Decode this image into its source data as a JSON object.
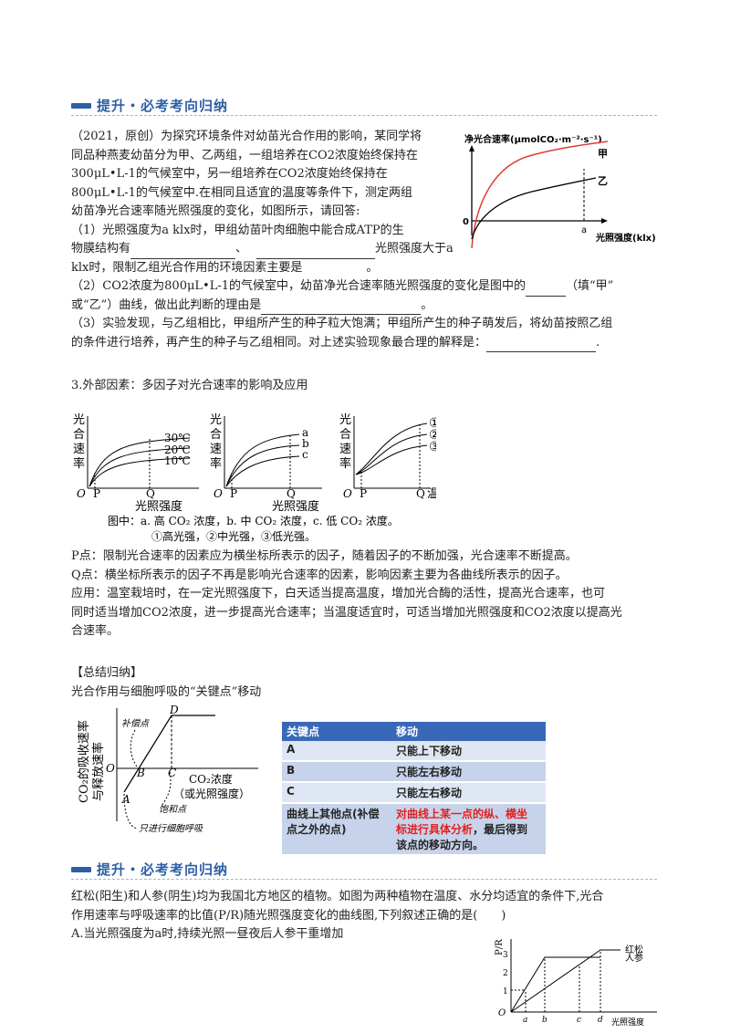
{
  "section1": {
    "title": "提升・必考考向归纳"
  },
  "question1": {
    "intro": "（2021，原创）为探究环境条件对幼苗光合作用的影响，某同学将同品种燕麦幼苗分为甲、乙两组，一组培养在CO2浓度始终保持在300μL•L-1的气候室中，另一组培养在CO2浓度始终保持在800μL•L-1的气候室中.在相同且适宜的温度等条件下，测定两组幼苗净光合速率随光照强度的变化，如图所示，请回答:",
    "lines": [
      "（2021，原创）为探究环境条件对幼苗光合作用的影响，某同学将",
      "同品种燕麦幼苗分为甲、乙两组，一组培养在CO2浓度始终保持在",
      "300μL•L-1的气候室中，另一组培养在CO2浓度始终保持在",
      "800μL•L-1的气候室中.在相同且适宜的温度等条件下，测定两组",
      "幼苗净光合速率随光照强度的变化，如图所示，请回答:"
    ],
    "q1_a": "（1）光照强度为a klx时，甲组幼苗叶肉细胞中能合成ATP的生",
    "q1_b_mid": "、",
    "q1_b_end": "光照强度大于a",
    "q1_b_start": "物膜结构有",
    "q1_c": "klx时，限制乙组光合作用的环境因素主要是",
    "q1_c_end": "。",
    "q2_a": "（2）CO2浓度为800μL•L-1的气候室中，幼苗净光合速率随光照强度的变化是图中的",
    "q2_a_end": "（填“甲”",
    "q2_b": "或“乙”）曲线，做出此判断的理由是",
    "q2_b_end": "。",
    "q3_a": "（3）实验发现，与乙组相比，甲组所产生的种子粒大饱满；甲组所产生的种子萌发后，将幼苗按照乙组",
    "q3_b": "的条件进行培养，再产生的种子与乙组相同。对上述实验现象最合理的解释是：",
    "q3_b_end": ".",
    "graph": {
      "ylabel": "净光合速率(μmolCO₂·m⁻²·s⁻¹)",
      "xlabel": "光照强度(klx)",
      "origin": "0",
      "a_label": "a",
      "curve_jia": "甲",
      "curve_yi": "乙"
    }
  },
  "factors": {
    "heading": "3.外部因素：多因子对光合速率的影响及应用",
    "g1": {
      "ylabel": [
        "光",
        "合",
        "速",
        "率"
      ],
      "xlabel": "光照强度",
      "origin": "O",
      "p": "P",
      "q": "Q",
      "curves": [
        "30℃",
        "20℃",
        "10℃"
      ]
    },
    "g2": {
      "ylabel": [
        "光",
        "合",
        "速",
        "率"
      ],
      "xlabel": "光照强度",
      "origin": "O",
      "p": "P",
      "q": "Q",
      "curves": [
        "a",
        "b",
        "c"
      ]
    },
    "g3": {
      "ylabel": [
        "光",
        "合",
        "速",
        "率"
      ],
      "xlabel": "温度",
      "origin": "O",
      "p": "P",
      "q": "Q",
      "curves": [
        "①",
        "②",
        "③"
      ]
    },
    "caption1": "图中：a. 高 CO₂ 浓度，b. 中 CO₂ 浓度，c. 低 CO₂ 浓度。",
    "caption2": "①高光强，②中光强，③低光强。",
    "p_point": "P点：限制光合速率的因素应为横坐标所表示的因子，随着因子的不断加强，光合速率不断提高。",
    "q_point": "Q点：横坐标所表示的因子不再是影响光合速率的因素，影响因素主要为各曲线所表示的因子。",
    "app1": "应用：温室栽培时，在一定光照强度下，白天适当提高温度，增加光合酶的活性，提高光合速率，也可",
    "app2": "同时适当增加CO2浓度，进一步提高光合速率；当温度适宜时，可适当增加光照强度和CO2浓度以提高光",
    "app3": "合速率。"
  },
  "summary": {
    "heading": "【总结归纳】",
    "sub": "光合作用与细胞呼吸的“关键点”移动",
    "diagram": {
      "yl1": "CO₂的吸收速率",
      "yl2": "与释放速率",
      "xl1": "CO₂浓度",
      "xl2": "（或光照强度）",
      "origin": "O",
      "A": "A",
      "B": "B",
      "C": "C",
      "D": "D",
      "note_comp": "补偿点",
      "note_sat": "饱和点",
      "note_resp": "只进行细胞呼吸"
    },
    "table": {
      "headers": [
        "关键点",
        "移动"
      ],
      "rows": [
        {
          "k": "A",
          "v": "只能上下移动"
        },
        {
          "k": "B",
          "v": "只能左右移动"
        },
        {
          "k": "C",
          "v": "只能左右移动"
        }
      ],
      "last_k": [
        "曲线上其他点(补偿",
        "点之外的点)"
      ],
      "last_v_red1": "对曲线上某一点的纵、横坐",
      "last_v_red2": "标进行具体分析",
      "last_v_tail1": "，最后得到",
      "last_v_tail2": "该点的移动方向。"
    }
  },
  "section2": {
    "title": "提升・必考考向归纳"
  },
  "question2": {
    "line1": "红松(阳生)和人参(阴生)均为我国北方地区的植物。如图为两种植物在温度、水分均适宜的条件下,光合",
    "line2": "作用速率与呼吸速率的比值(P/R)随光照强度变化的曲线图,下列叙述正确的是(　　)",
    "optA": "A.当光照强度为a时,持续光照一昼夜后人参干重增加",
    "graph": {
      "ylabel": "P/R",
      "yticks": [
        "1",
        "2",
        "3"
      ],
      "xticks": [
        "a",
        "b",
        "c",
        "d"
      ],
      "origin": "O",
      "xlabel": "光照强度",
      "curve1": "红松",
      "curve2": "人参"
    }
  }
}
